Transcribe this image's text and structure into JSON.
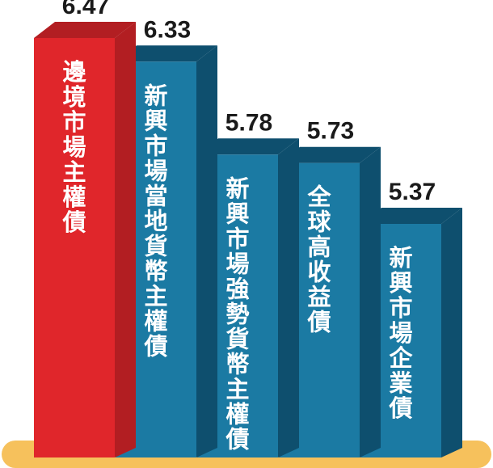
{
  "chart_data": {
    "type": "bar",
    "title": "",
    "xlabel": "",
    "ylabel": "",
    "categories": [
      "邊境市場主權債",
      "新興市場當地貨幣主權債",
      "新興市場強勢貨幣主權債",
      "全球高收益債",
      "新興市場企業債"
    ],
    "values": [
      6.47,
      6.33,
      5.78,
      5.73,
      5.37
    ],
    "value_labels": [
      "6.47",
      "6.33",
      "5.78",
      "5.73",
      "5.37"
    ],
    "colors": {
      "highlight": "#e0262b",
      "highlight_side": "#b21e22",
      "bar": "#1b7aa3",
      "bar_side": "#0e4f6e",
      "base": "#f6c15c"
    },
    "highlight_index": 0,
    "style": "3d-bar",
    "grid": false,
    "legend": "none"
  }
}
